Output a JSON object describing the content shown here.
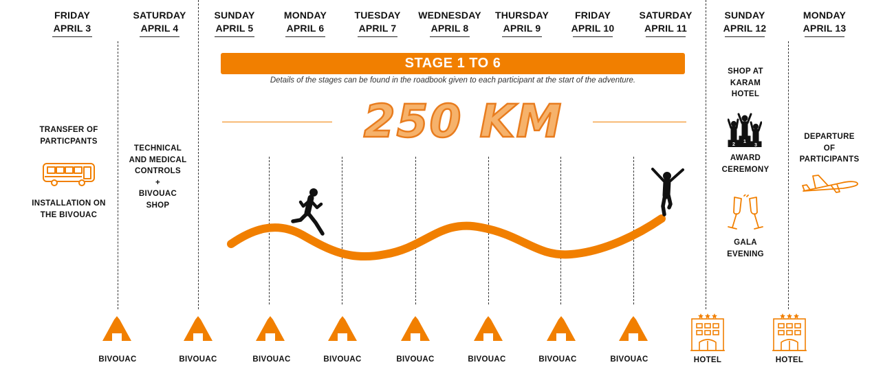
{
  "days": [
    {
      "weekday": "FRIDAY",
      "date": "APRIL 3"
    },
    {
      "weekday": "SATURDAY",
      "date": "APRIL 4"
    },
    {
      "weekday": "SUNDAY",
      "date": "APRIL 5"
    },
    {
      "weekday": "MONDAY",
      "date": "APRIL 6"
    },
    {
      "weekday": "TUESDAY",
      "date": "APRIL 7"
    },
    {
      "weekday": "WEDNESDAY",
      "date": "APRIL 8"
    },
    {
      "weekday": "THURSDAY",
      "date": "APRIL 9"
    },
    {
      "weekday": "FRIDAY",
      "date": "APRIL 10"
    },
    {
      "weekday": "SATURDAY",
      "date": "APRIL 11"
    },
    {
      "weekday": "SUNDAY",
      "date": "APRIL 12"
    },
    {
      "weekday": "MONDAY",
      "date": "APRIL 13"
    }
  ],
  "stage": {
    "title": "STAGE 1 TO 6",
    "note": "Details of the stages can be found in the roadbook given to each participant at the start of the adventure.",
    "distance": "250 KM"
  },
  "activities": {
    "transfer": [
      "TRANSFER OF",
      "PARTICPANTS"
    ],
    "installation": [
      "INSTALLATION ON",
      "THE BIVOUAC"
    ],
    "controls": [
      "TECHNICAL",
      "AND MEDICAL",
      "CONTROLS",
      "+",
      "BIVOUAC",
      "SHOP"
    ],
    "shop": [
      "SHOP AT",
      "KARAM",
      "HOTEL"
    ],
    "award": [
      "AWARD",
      "CEREMONY"
    ],
    "gala": [
      "GALA",
      "EVENING"
    ],
    "departure": [
      "DEPARTURE",
      "OF",
      "PARTICIPANTS"
    ]
  },
  "lodging": [
    "BIVOUAC",
    "BIVOUAC",
    "BIVOUAC",
    "BIVOUAC",
    "BIVOUAC",
    "BIVOUAC",
    "BIVOUAC",
    "BIVOUAC",
    "HOTEL",
    "HOTEL"
  ],
  "icons": [
    "bus-icon",
    "podium-icon",
    "champagne-icon",
    "airplane-icon",
    "runner-icon",
    "celebrating-runner-icon",
    "tent-icon",
    "hotel-icon"
  ],
  "colors": {
    "accent": "#F17F00",
    "accent_light": "#F6B26B",
    "text": "#111111"
  }
}
